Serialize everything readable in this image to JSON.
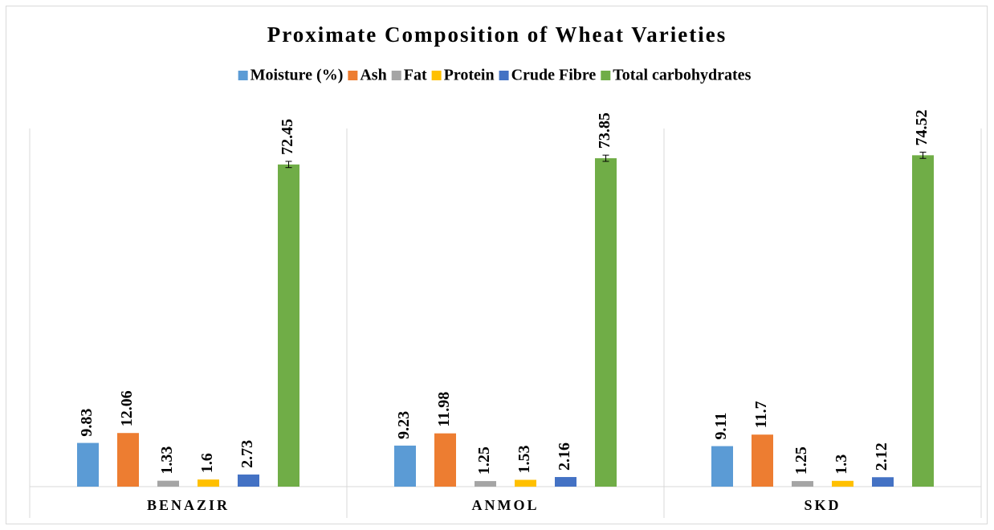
{
  "chart_data": {
    "type": "bar",
    "title": "Proximate Composition of Wheat Varieties",
    "categories": [
      "BENAZIR",
      "ANMOL",
      "SKD"
    ],
    "series": [
      {
        "name": "Moisture (%)",
        "color": "#5b9bd5",
        "values": [
          9.83,
          9.23,
          9.11
        ]
      },
      {
        "name": "Ash",
        "color": "#ed7d31",
        "values": [
          12.06,
          11.98,
          11.7
        ]
      },
      {
        "name": "Fat",
        "color": "#a5a5a5",
        "values": [
          1.33,
          1.25,
          1.25
        ]
      },
      {
        "name": "Protein",
        "color": "#ffc000",
        "values": [
          1.6,
          1.53,
          1.3
        ]
      },
      {
        "name": "Crude Fibre",
        "color": "#4472c4",
        "values": [
          2.73,
          2.16,
          2.12
        ]
      },
      {
        "name": "Total carbohydrates",
        "color": "#70ad47",
        "values": [
          72.45,
          73.85,
          74.52
        ],
        "errors": [
          0.7,
          0.7,
          0.7
        ]
      }
    ],
    "ylim": [
      0,
      80
    ],
    "legend": "top"
  }
}
